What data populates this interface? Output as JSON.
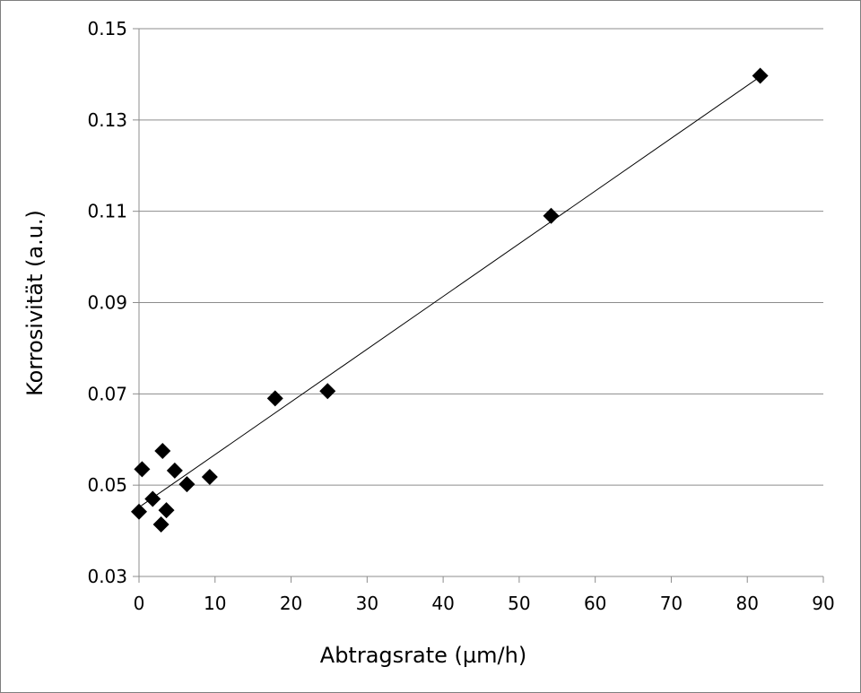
{
  "chart_data": {
    "type": "scatter",
    "title": "",
    "xlabel": "Abtragsrate (µm/h)",
    "ylabel": "Korrosivität (a.u.)",
    "xlim": [
      0,
      90
    ],
    "ylim": [
      0.03,
      0.15
    ],
    "x_ticks": [
      0,
      10,
      20,
      30,
      40,
      50,
      60,
      70,
      80,
      90
    ],
    "y_ticks": [
      0.03,
      0.05,
      0.07,
      0.09,
      0.11,
      0.13,
      0.15
    ],
    "x_tick_labels": [
      "0",
      "10",
      "20",
      "30",
      "40",
      "50",
      "60",
      "70",
      "80",
      "90"
    ],
    "y_tick_labels": [
      "0.03",
      "0.05",
      "0.07",
      "0.09",
      "0.11",
      "0.13",
      "0.15"
    ],
    "grid": "horizontal",
    "legend": "none",
    "marker": "diamond",
    "marker_color": "#000000",
    "trendline": {
      "type": "linear",
      "x": [
        0.3,
        81.7
      ],
      "y": [
        0.0455,
        0.1395
      ]
    },
    "series": [
      {
        "x": [
          0.0,
          0.4,
          1.8,
          2.9,
          3.1,
          3.6,
          4.7,
          6.3,
          9.3,
          17.9,
          24.8,
          54.2,
          81.7
        ],
        "y": [
          0.0442,
          0.0535,
          0.047,
          0.0414,
          0.0575,
          0.0445,
          0.0532,
          0.0502,
          0.0518,
          0.069,
          0.0706,
          0.109,
          0.1397
        ]
      }
    ]
  }
}
